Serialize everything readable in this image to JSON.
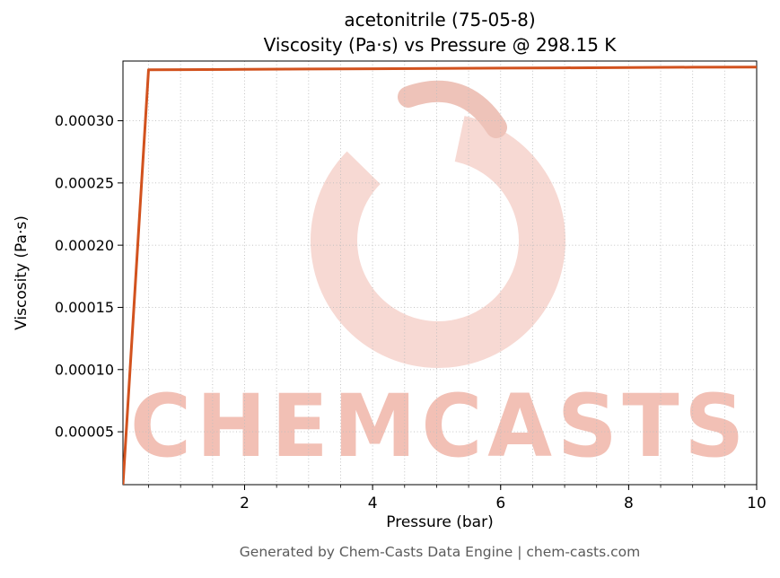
{
  "title_line1": "acetonitrile (75-05-8)",
  "title_line2": "Viscosity (Pa·s) vs Pressure @ 298.15 K",
  "footer": "Generated by Chem-Casts Data Engine | chem-casts.com",
  "watermark": {
    "text": "CHEMCASTS",
    "text_color": "#f2c0b5",
    "ring_color": "#f7d9d3",
    "hook_color": "#eec3b9"
  },
  "chart_data": {
    "type": "line",
    "title": "acetonitrile (75-05-8) — Viscosity (Pa·s) vs Pressure @ 298.15 K",
    "xlabel": "Pressure (bar)",
    "ylabel": "Viscosity (Pa·s)",
    "x": [
      0.1,
      0.5,
      1,
      2,
      3,
      4,
      5,
      6,
      7,
      8,
      9,
      10
    ],
    "series": [
      {
        "name": "viscosity",
        "color": "#d2521e",
        "values": [
          7.5e-06,
          0.000341,
          0.0003411,
          0.0003413,
          0.0003416,
          0.0003418,
          0.000342,
          0.0003423,
          0.0003425,
          0.0003428,
          0.000343,
          0.0003432
        ]
      }
    ],
    "xlim": [
      0.1,
      10
    ],
    "ylim": [
      7.5e-06,
      0.000348
    ],
    "xticks": [
      2,
      4,
      6,
      8,
      10
    ],
    "xtick_labels": [
      "2",
      "4",
      "6",
      "8",
      "10"
    ],
    "x_minor_step": 0.5,
    "yticks": [
      5e-05,
      0.0001,
      0.00015,
      0.0002,
      0.00025,
      0.0003
    ],
    "ytick_labels": [
      "0.00005",
      "0.00010",
      "0.00015",
      "0.00020",
      "0.00025",
      "0.00030"
    ],
    "grid": true,
    "grid_style": "dotted",
    "legend": false,
    "line_width": 3
  }
}
